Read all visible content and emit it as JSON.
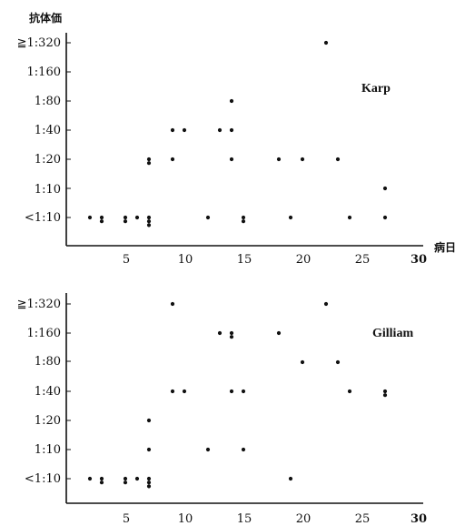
{
  "colors": {
    "ink": "#111111",
    "background": "#ffffff"
  },
  "chart_data": [
    {
      "type": "scatter",
      "title": "",
      "ylabel": "抗体価",
      "xlabel": "病日",
      "series_label": "Karp",
      "y_categories": [
        "<1:10",
        "1:10",
        "1:20",
        "1:40",
        "1:80",
        "1:160",
        "≧1:320"
      ],
      "xlim": [
        0,
        30
      ],
      "x_ticks": [
        5,
        10,
        15,
        20,
        25,
        30
      ],
      "grid": false,
      "points": [
        {
          "x": 2,
          "y": "<1:10"
        },
        {
          "x": 3,
          "y": "<1:10"
        },
        {
          "x": 3,
          "y": "<1:10"
        },
        {
          "x": 5,
          "y": "<1:10"
        },
        {
          "x": 5,
          "y": "<1:10"
        },
        {
          "x": 6,
          "y": "<1:10"
        },
        {
          "x": 7,
          "y": "<1:10"
        },
        {
          "x": 7,
          "y": "<1:10"
        },
        {
          "x": 7,
          "y": "<1:10"
        },
        {
          "x": 12,
          "y": "<1:10"
        },
        {
          "x": 15,
          "y": "<1:10"
        },
        {
          "x": 15,
          "y": "<1:10"
        },
        {
          "x": 19,
          "y": "<1:10"
        },
        {
          "x": 24,
          "y": "<1:10"
        },
        {
          "x": 27,
          "y": "<1:10"
        },
        {
          "x": 27,
          "y": "1:10"
        },
        {
          "x": 7,
          "y": "1:20"
        },
        {
          "x": 7,
          "y": "1:20"
        },
        {
          "x": 9,
          "y": "1:20"
        },
        {
          "x": 14,
          "y": "1:20"
        },
        {
          "x": 18,
          "y": "1:20"
        },
        {
          "x": 20,
          "y": "1:20"
        },
        {
          "x": 23,
          "y": "1:20"
        },
        {
          "x": 9,
          "y": "1:40"
        },
        {
          "x": 10,
          "y": "1:40"
        },
        {
          "x": 13,
          "y": "1:40"
        },
        {
          "x": 14,
          "y": "1:40"
        },
        {
          "x": 14,
          "y": "1:80"
        },
        {
          "x": 22,
          "y": "≧1:320"
        }
      ]
    },
    {
      "type": "scatter",
      "title": "",
      "ylabel": "",
      "xlabel": "",
      "series_label": "Gilliam",
      "y_categories": [
        "<1:10",
        "1:10",
        "1:20",
        "1:40",
        "1:80",
        "1:160",
        "≧1:320"
      ],
      "xlim": [
        0,
        30
      ],
      "x_ticks": [
        5,
        10,
        15,
        20,
        25,
        30
      ],
      "grid": false,
      "points": [
        {
          "x": 2,
          "y": "<1:10"
        },
        {
          "x": 3,
          "y": "<1:10"
        },
        {
          "x": 3,
          "y": "<1:10"
        },
        {
          "x": 5,
          "y": "<1:10"
        },
        {
          "x": 5,
          "y": "<1:10"
        },
        {
          "x": 6,
          "y": "<1:10"
        },
        {
          "x": 7,
          "y": "<1:10"
        },
        {
          "x": 7,
          "y": "<1:10"
        },
        {
          "x": 7,
          "y": "<1:10"
        },
        {
          "x": 19,
          "y": "<1:10"
        },
        {
          "x": 7,
          "y": "1:10"
        },
        {
          "x": 12,
          "y": "1:10"
        },
        {
          "x": 15,
          "y": "1:10"
        },
        {
          "x": 7,
          "y": "1:20"
        },
        {
          "x": 9,
          "y": "1:40"
        },
        {
          "x": 10,
          "y": "1:40"
        },
        {
          "x": 14,
          "y": "1:40"
        },
        {
          "x": 15,
          "y": "1:40"
        },
        {
          "x": 24,
          "y": "1:40"
        },
        {
          "x": 27,
          "y": "1:40"
        },
        {
          "x": 27,
          "y": "1:40"
        },
        {
          "x": 20,
          "y": "1:80"
        },
        {
          "x": 23,
          "y": "1:80"
        },
        {
          "x": 13,
          "y": "1:160"
        },
        {
          "x": 14,
          "y": "1:160"
        },
        {
          "x": 14,
          "y": "1:160"
        },
        {
          "x": 18,
          "y": "1:160"
        },
        {
          "x": 9,
          "y": "≧1:320"
        },
        {
          "x": 22,
          "y": "≧1:320"
        }
      ]
    }
  ]
}
